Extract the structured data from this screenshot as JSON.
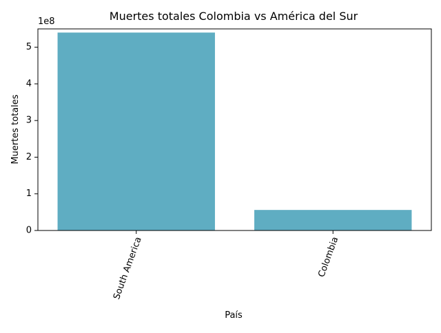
{
  "chart_data": {
    "type": "bar",
    "title": "Muertes totales Colombia vs América del Sur",
    "xlabel": "País",
    "ylabel": "Muertes totales",
    "categories": [
      "South America",
      "Colombia"
    ],
    "values": [
      540000000,
      56000000
    ],
    "ylim": [
      0,
      550000000
    ],
    "yticks": [
      0,
      1,
      2,
      3,
      4,
      5
    ],
    "ytick_labels": [
      "0",
      "1",
      "2",
      "3",
      "4",
      "5"
    ],
    "y_offset_label": "1e8",
    "xtick_rotation": 70,
    "bar_color": "#5fadc2",
    "grid": false,
    "legend": "none"
  }
}
